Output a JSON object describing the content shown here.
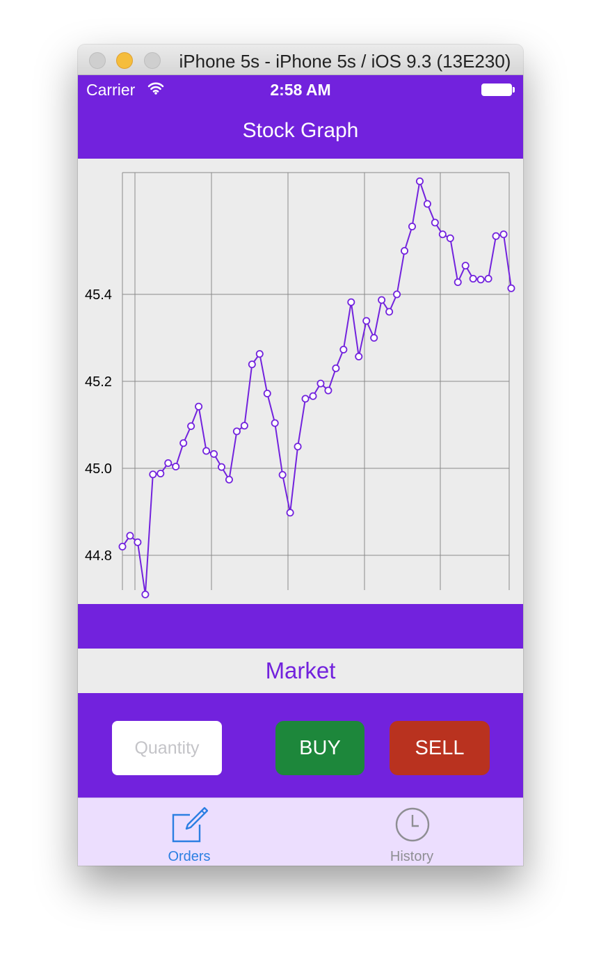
{
  "window": {
    "title": "iPhone 5s - iPhone 5s / iOS 9.3 (13E230)"
  },
  "status_bar": {
    "carrier": "Carrier",
    "time": "2:58 AM"
  },
  "nav": {
    "title": "Stock Graph"
  },
  "market": {
    "label": "Market"
  },
  "order": {
    "quantity_placeholder": "Quantity",
    "quantity_value": "",
    "buy_label": "BUY",
    "sell_label": "SELL"
  },
  "tabs": [
    {
      "label": "Orders",
      "icon": "compose-icon",
      "selected": true
    },
    {
      "label": "History",
      "icon": "clock-icon",
      "selected": false
    }
  ],
  "colors": {
    "brand_purple": "#7222dd",
    "buy_green": "#1d873b",
    "sell_red": "#b9321f",
    "tab_selected": "#2b7fe2",
    "tab_unselected": "#8e8e93",
    "tabbar_bg": "#ecdefe"
  },
  "chart_data": {
    "type": "line",
    "title": "",
    "xlabel": "",
    "ylabel": "",
    "ylim": [
      44.72,
      45.68
    ],
    "yticks": [
      44.8,
      45.0,
      45.2,
      45.4
    ],
    "ytick_labels": [
      "44.8",
      "45.0",
      "45.2",
      "45.4"
    ],
    "grid": true,
    "line_color": "#7222dd",
    "marker": "open-circle",
    "series": [
      {
        "values": [
          44.82,
          44.845,
          44.83,
          44.71,
          44.986,
          44.988,
          45.012,
          45.004,
          45.058,
          45.097,
          45.142,
          45.04,
          45.033,
          45.003,
          44.974,
          45.085,
          45.098,
          45.239,
          45.263,
          45.172,
          45.104,
          44.985,
          44.898,
          45.05,
          45.16,
          45.166,
          45.195,
          45.179,
          45.23,
          45.273,
          45.382,
          45.257,
          45.339,
          45.3,
          45.387,
          45.36,
          45.4,
          45.5,
          45.556,
          45.66,
          45.608,
          45.565,
          45.538,
          45.529,
          45.428,
          45.466,
          45.436,
          45.434,
          45.436,
          45.534,
          45.538,
          45.414
        ]
      }
    ]
  }
}
